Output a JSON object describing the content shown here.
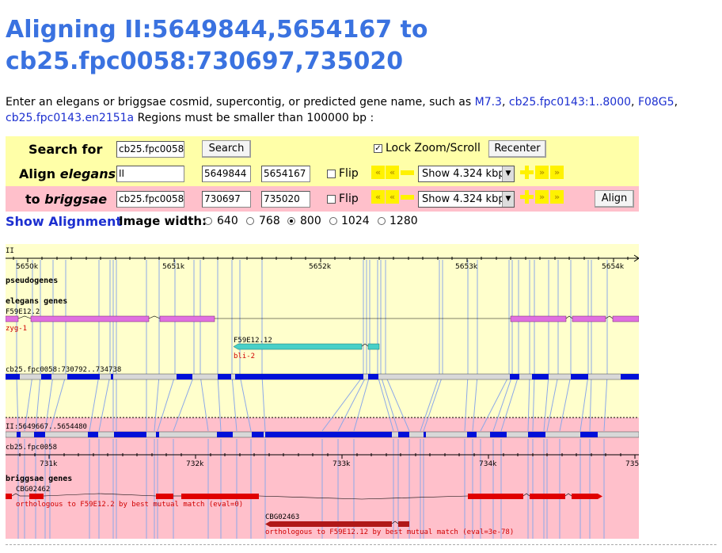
{
  "title_line1": "Aligning II:5649844,5654167 to",
  "title_line2": "cb25.fpc0058:730697,735020",
  "intro": {
    "prefix": "Enter an elegans or briggsae cosmid, supercontig, or predicted gene name, such as ",
    "link1": "M7.3",
    "sep1": ", ",
    "link2": "cb25.fpc0143:1..8000",
    "sep2": ", ",
    "link3": "F08G5",
    "sep3": ",",
    "link4": "cb25.fpc0143.en2151a",
    "suffix": " Regions must be smaller than 100000 bp :"
  },
  "form": {
    "search_label": "Search for",
    "search_value": "cb25.fpc0058:",
    "search_button": "Search",
    "lock_checked": "✓",
    "lock_label": "Lock Zoom/Scroll",
    "recenter_button": "Recenter",
    "align_label_pre": "Align ",
    "align_label_em": "elegans",
    "elegans_seq": "II",
    "elegans_start": "5649844",
    "elegans_end": "5654167",
    "flip_label": "Flip",
    "zoom_left": "«",
    "zoom_right": "»",
    "elegans_zoom": "Show 4.324 kbp",
    "briggsae_label_pre": "to ",
    "briggsae_label_em": "briggsae",
    "briggsae_seq": "cb25.fpc0058",
    "briggsae_start": "730697",
    "briggsae_end": "735020",
    "briggsae_zoom": "Show 4.324 kbp",
    "align_button": "Align",
    "show_alignment": "Show Alignment",
    "image_width_label": "Image width:",
    "widths": [
      "640",
      "768",
      "800",
      "1024",
      "1280"
    ],
    "selected_width": "800"
  },
  "viewer": {
    "top_ref": "II",
    "top_ticks": [
      "5650k",
      "5651k",
      "5652k",
      "5653k",
      "5654k"
    ],
    "pseudogenes_label": "pseudogenes",
    "elegans_genes_label": "elegans genes",
    "gene1_name": "F59E12.2",
    "gene1_alias": "zyg-1",
    "gene2_name": "F59E12.12",
    "gene2_alias": "bli-2",
    "contig_label_top": "cb25.fpc0058:730792..734738",
    "contig_label_bottom": "II:5649667..5654480",
    "bottom_ref": "cb25.fpc0058",
    "bottom_ticks": [
      "731k",
      "732k",
      "733k",
      "734k",
      "735"
    ],
    "briggsae_genes_label": "briggsae genes",
    "bgene1_name": "CBG02462",
    "bgene1_note": "orthologous to F59E12.2 by best mutual match (eval=0)",
    "bgene2_name": "CBG02463",
    "bgene2_note": "orthologous to F59E12.12 by best mutual match (eval=3e-78)",
    "colors": {
      "elegans_bg": "#ffffcc",
      "briggsae_bg": "#ffc0cb",
      "elegans_gene": "#e070e0",
      "bli2_gene": "#48d0c8",
      "aligned_block": "#0010d8",
      "briggsae_gene": "#e00000",
      "bgene2": "#b01818",
      "link_line": "#8ca8e8"
    }
  }
}
